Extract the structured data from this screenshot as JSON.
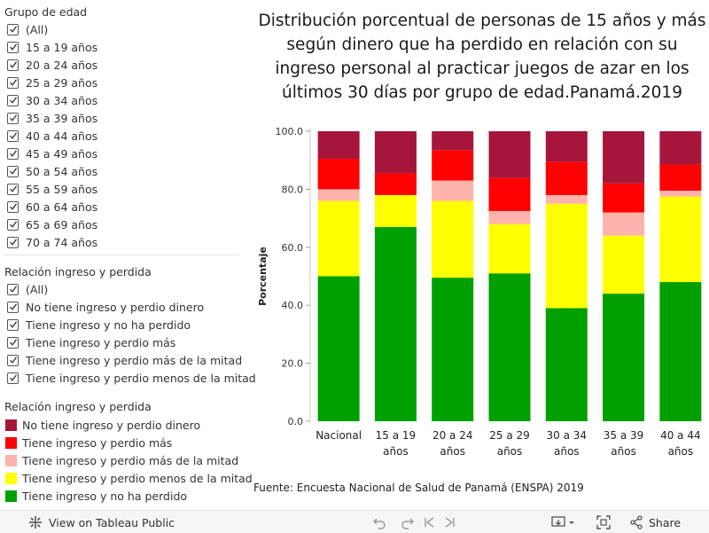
{
  "filters": {
    "age_group": {
      "title": "Grupo de edad",
      "options": [
        "(All)",
        "15 a 19 años",
        "20 a 24 años",
        "25 a 29 años",
        "30 a 34 años",
        "35 a 39 años",
        "40 a 44 años",
        "45 a 49 años",
        "50 a 54 años",
        "55 a 59 años",
        "60 a 64 años",
        "65 a 69 años",
        "70 a 74 años"
      ]
    },
    "relation": {
      "title": "Relación ingreso y perdida",
      "options": [
        "(All)",
        "No tiene ingreso y perdio dinero",
        "Tiene ingreso y no ha perdido",
        "Tiene ingreso y perdio más",
        "Tiene ingreso y perdio más de la mitad",
        "Tiene ingreso y perdio menos de la mitad"
      ]
    }
  },
  "legend": {
    "title": "Relación ingreso y perdida",
    "items": [
      {
        "label": "No tiene ingreso y perdio dinero",
        "color": "#a5163a"
      },
      {
        "label": "Tiene ingreso y perdio más",
        "color": "#ff0000"
      },
      {
        "label": "Tiene ingreso y perdio más de la mitad",
        "color": "#ffb3ab"
      },
      {
        "label": "Tiene ingreso y perdio menos de la mitad",
        "color": "#ffff00"
      },
      {
        "label": "Tiene ingreso y no ha perdido",
        "color": "#00a000"
      }
    ]
  },
  "chart_data": {
    "type": "bar",
    "stacked": true,
    "title": "Distribución porcentual de personas de 15 años y más según dinero que ha perdido en relación con su ingreso personal al practicar juegos de azar en los últimos 30 días por grupo de edad.Panamá.2019",
    "title_lines": [
      "Distribución porcentual de personas de 15 años y más",
      "según dinero que ha perdido en relación con su",
      "ingreso personal al practicar juegos de azar en los",
      "últimos 30 días por grupo de edad.Panamá.2019"
    ],
    "ylabel": "Porcentaje",
    "xlabel": "",
    "ylim": [
      0,
      100
    ],
    "yticks": [
      "0.0",
      "20.0",
      "40.0",
      "60.0",
      "80.0",
      "100.0"
    ],
    "categories": [
      "Nacional",
      "15 a 19 años",
      "20 a 24 años",
      "25 a 29 años",
      "30 a 34 años",
      "35 a 39 años",
      "40 a 44 años"
    ],
    "category_lines": [
      [
        "Nacional"
      ],
      [
        "15 a 19",
        "años"
      ],
      [
        "20 a 24",
        "años"
      ],
      [
        "25 a 29",
        "años"
      ],
      [
        "30 a 34",
        "años"
      ],
      [
        "35 a 39",
        "años"
      ],
      [
        "40 a 44",
        "años"
      ]
    ],
    "series": [
      {
        "name": "Tiene ingreso y no ha perdido",
        "color": "#00a000",
        "values": [
          50.0,
          67.0,
          49.5,
          51.0,
          39.0,
          44.0,
          48.0
        ]
      },
      {
        "name": "Tiene ingreso y perdio menos de la mitad",
        "color": "#ffff00",
        "values": [
          26.0,
          11.0,
          26.5,
          17.0,
          36.0,
          20.0,
          29.5
        ]
      },
      {
        "name": "Tiene ingreso y perdio más de la mitad",
        "color": "#ffb3ab",
        "values": [
          4.0,
          0.0,
          7.0,
          4.5,
          3.0,
          8.0,
          2.0
        ]
      },
      {
        "name": "Tiene ingreso y perdio más",
        "color": "#ff0000",
        "values": [
          10.5,
          7.5,
          10.5,
          11.5,
          11.5,
          10.0,
          9.0
        ]
      },
      {
        "name": "No tiene ingreso y perdio dinero",
        "color": "#a5163a",
        "values": [
          9.5,
          14.5,
          6.5,
          16.0,
          10.5,
          18.0,
          11.5
        ]
      }
    ]
  },
  "source": "Fuente: Encuesta Nacional de Salud de Panamá (ENSPA) 2019",
  "toolbar": {
    "view_label": "View on Tableau Public",
    "share_label": "Share"
  }
}
